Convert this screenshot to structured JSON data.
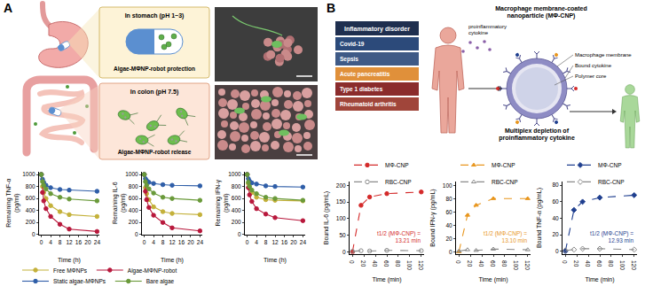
{
  "diagram": {
    "panel_labels": [
      "A",
      "B"
    ],
    "A": {
      "stomach_box": {
        "title": "In stomach (pH 1~3)",
        "caption": "Algae-MΦNP-robot protection"
      },
      "colon_box": {
        "title": "In colon (pH 7.5)",
        "caption": "Algae-MΦNP-robot release"
      }
    },
    "B": {
      "disorder_header": "Inflammatory disorder",
      "disorders": [
        "Covid-19",
        "Sepsis",
        "Acute pancreatitis",
        "Type 1 diabetes",
        "Rheumatoid arthritis"
      ],
      "cytokine_label": "proinflammatory cytokine",
      "particle_title": "Macrophage membrane-coated nanoparticle (MΦ-CNP)",
      "particle_parts": [
        "Macrophage membrane",
        "Bound cytokine",
        "Polymer core"
      ],
      "caption": "Multiplex depletion of proinflammatory cytokine"
    }
  },
  "chart_data": [
    {
      "type": "line",
      "x_label": "Time (h)",
      "y_label": "Remaining TNF-α (pg/ml)",
      "x": [
        0,
        0.5,
        1,
        2,
        4,
        8,
        12,
        24
      ],
      "xlim": [
        -1,
        25
      ],
      "xticks": [
        0,
        4,
        8,
        12,
        16,
        20,
        24
      ],
      "ylim": [
        0,
        1050
      ],
      "yticks": [
        0,
        200,
        400,
        600,
        800,
        1000
      ],
      "grid": false,
      "legend": "bottom",
      "series": [
        {
          "name": "Free MΦNPs",
          "color": "#c4b13a",
          "marker": "circle",
          "line_style": "solid",
          "values": [
            1000,
            800,
            700,
            600,
            480,
            380,
            330,
            300
          ]
        },
        {
          "name": "Algae-MΦNP-robot",
          "color": "#b8183c",
          "marker": "circle",
          "line_style": "solid",
          "values": [
            1000,
            700,
            560,
            430,
            300,
            170,
            90,
            50
          ]
        },
        {
          "name": "Static algae-MΦNPs",
          "color": "#2f5ea8",
          "marker": "circle",
          "line_style": "solid",
          "values": [
            1000,
            920,
            870,
            820,
            780,
            750,
            740,
            720
          ]
        },
        {
          "name": "Bare algae",
          "color": "#6a9a3a",
          "marker": "circle",
          "line_style": "solid",
          "values": [
            1000,
            880,
            820,
            760,
            680,
            620,
            590,
            560
          ]
        }
      ]
    },
    {
      "type": "line",
      "x_label": "Time (h)",
      "y_label": "Remaining IL-6 (pg/ml)",
      "x": [
        0,
        0.5,
        1,
        2,
        4,
        8,
        12,
        24
      ],
      "xlim": [
        -1,
        25
      ],
      "xticks": [
        0,
        4,
        8,
        12,
        16,
        20,
        24
      ],
      "ylim": [
        0,
        1050
      ],
      "yticks": [
        0,
        200,
        400,
        600,
        800,
        1000
      ],
      "grid": false,
      "series": [
        {
          "name": "Free MΦNPs",
          "color": "#c4b13a",
          "marker": "circle",
          "line_style": "solid",
          "values": [
            1000,
            780,
            680,
            580,
            460,
            380,
            350,
            330
          ]
        },
        {
          "name": "Algae-MΦNP-robot",
          "color": "#b8183c",
          "marker": "circle",
          "line_style": "solid",
          "values": [
            1000,
            720,
            580,
            450,
            320,
            200,
            110,
            60
          ]
        },
        {
          "name": "Static algae-MΦNPs",
          "color": "#2f5ea8",
          "marker": "circle",
          "line_style": "solid",
          "values": [
            1000,
            930,
            900,
            870,
            850,
            830,
            820,
            810
          ]
        },
        {
          "name": "Bare algae",
          "color": "#6a9a3a",
          "marker": "circle",
          "line_style": "solid",
          "values": [
            1000,
            880,
            820,
            760,
            690,
            620,
            600,
            570
          ]
        }
      ]
    },
    {
      "type": "line",
      "x_label": "Time (h)",
      "y_label": "Remaining IFN-γ (pg/ml)",
      "x": [
        0,
        0.5,
        1,
        2,
        4,
        8,
        12,
        24
      ],
      "xlim": [
        -1,
        25
      ],
      "xticks": [
        0,
        4,
        8,
        12,
        16,
        20,
        24
      ],
      "ylim": [
        0,
        1050
      ],
      "yticks": [
        0,
        200,
        400,
        600,
        800,
        1000
      ],
      "grid": false,
      "series": [
        {
          "name": "Free MΦNPs",
          "color": "#c4b13a",
          "marker": "circle",
          "line_style": "solid",
          "values": [
            1000,
            850,
            770,
            700,
            620,
            580,
            570,
            560
          ]
        },
        {
          "name": "Algae-MΦNP-robot",
          "color": "#b8183c",
          "marker": "circle",
          "line_style": "solid",
          "values": [
            1000,
            780,
            660,
            550,
            430,
            340,
            280,
            230
          ]
        },
        {
          "name": "Static algae-MΦNPs",
          "color": "#2f5ea8",
          "marker": "circle",
          "line_style": "solid",
          "values": [
            1000,
            930,
            890,
            860,
            840,
            810,
            800,
            790
          ]
        },
        {
          "name": "Bare algae",
          "color": "#6a9a3a",
          "marker": "circle",
          "line_style": "solid",
          "values": [
            1000,
            870,
            800,
            740,
            680,
            620,
            600,
            570
          ]
        }
      ]
    },
    {
      "type": "line",
      "x_label": "Time (min)",
      "y_label": "Bound IL-6 (pg/mL)",
      "x": [
        0,
        15,
        30,
        60,
        120
      ],
      "xlim": [
        -5,
        125
      ],
      "xticks": [
        0,
        20,
        40,
        60,
        80,
        100,
        120
      ],
      "ylim": [
        -5,
        210
      ],
      "yticks": [
        0,
        50,
        100,
        150,
        200
      ],
      "grid": false,
      "legend": "top",
      "annotations": [
        {
          "text": "t1/2 (MΦ-CNP) = 13.21 min"
        }
      ],
      "series": [
        {
          "name": "MΦ-CNP",
          "color": "#d42a2a",
          "marker": "circle",
          "line_style": "dashed",
          "values": [
            0,
            140,
            165,
            175,
            180
          ]
        },
        {
          "name": "RBC-CNP",
          "color": "#8a8a8a",
          "marker": "circle-open",
          "line_style": "dashed",
          "values": [
            2,
            4,
            3,
            5,
            4
          ]
        }
      ]
    },
    {
      "type": "line",
      "x_label": "Time (min)",
      "y_label": "Bound IFN-γ (pg/mL)",
      "x": [
        0,
        15,
        30,
        60,
        120
      ],
      "xlim": [
        -5,
        125
      ],
      "xticks": [
        0,
        20,
        40,
        60,
        80,
        100,
        120
      ],
      "ylim": [
        -3,
        105
      ],
      "yticks": [
        0,
        20,
        40,
        60,
        80,
        100
      ],
      "grid": false,
      "legend": "top",
      "annotations": [
        {
          "text": "t1/2 (MΦ-CNP) = 13.10 min"
        }
      ],
      "series": [
        {
          "name": "MΦ-CNP",
          "color": "#e8961e",
          "marker": "triangle-up",
          "line_style": "dashed",
          "values": [
            0,
            55,
            70,
            80,
            80
          ]
        },
        {
          "name": "RBC-CNP",
          "color": "#8a8a8a",
          "marker": "triangle-up-open",
          "line_style": "dashed",
          "values": [
            1,
            3,
            2,
            4,
            3
          ]
        }
      ]
    },
    {
      "type": "line",
      "x_label": "Time (min)",
      "y_label": "Bound TNF-α (pg/mL)",
      "x": [
        0,
        15,
        30,
        60,
        120
      ],
      "xlim": [
        -5,
        125
      ],
      "xticks": [
        0,
        20,
        40,
        60,
        80,
        100,
        120
      ],
      "ylim": [
        -3,
        84
      ],
      "yticks": [
        0,
        20,
        40,
        60,
        80
      ],
      "grid": false,
      "legend": "top",
      "annotations": [
        {
          "text": "t1/2 (MΦ-CNP) = 12.93 min"
        }
      ],
      "series": [
        {
          "name": "MΦ-CNP",
          "color": "#1f3f8f",
          "marker": "diamond",
          "line_style": "dashed",
          "values": [
            0,
            50,
            60,
            65,
            68
          ]
        },
        {
          "name": "RBC-CNP",
          "color": "#8a8a8a",
          "marker": "diamond-open",
          "line_style": "dashed",
          "values": [
            1,
            2,
            3,
            3,
            2
          ]
        }
      ]
    }
  ]
}
